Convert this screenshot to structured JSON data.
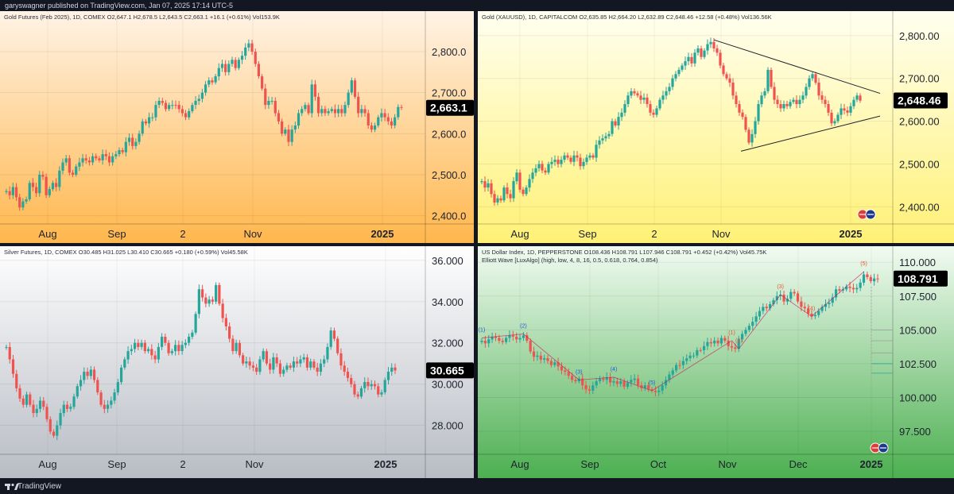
{
  "header": {
    "publish_line": "garyswagner published on TradingView.com, Jan 07, 2025 17:14 UTC-5"
  },
  "footer": {
    "brand": "TradingView"
  },
  "colors": {
    "up": "#26a69a",
    "down": "#ef5350",
    "badge": "#000000"
  },
  "panels": {
    "gold_futures": {
      "title": "Gold Futures (Feb 2025), 1D, COMEX  O2,647.1  H2,678.5  L2,643.5  C2,663.1  +16.1 (+0.61%)  Vol153.9K",
      "last_price": "2,663.1"
    },
    "gold_spot": {
      "title": "Gold (XAUUSD), 1D, CAPITALCOM  O2,635.85  H2,664.20  L2,632.89  C2,648.46  +12.58 (+0.48%)  Vol136.56K",
      "last_price": "2,648.46"
    },
    "silver": {
      "title": "Silver Futures, 1D, COMEX  O30.485  H31.025  L30.410  C30.665  +0.180 (+0.59%)  Vol45.58K",
      "last_price": "30.665"
    },
    "dxy": {
      "title": "US Dollar Index, 1D, PEPPERSTONE  O108.436  H108.791  L107.946  C108.791  +0.452 (+0.42%)  Vol45.75K",
      "indicator": "Elliott Wave [LuxAlgo] (high, low, 4, 8, 16, 0.5, 0.618, 0.764, 0.854)",
      "last_price": "108.791"
    }
  },
  "chart_data": [
    {
      "id": "gold_futures",
      "type": "candlestick",
      "title": "Gold Futures (Feb 2025), 1D, COMEX",
      "y_ticks": [
        "2,800.0",
        "2,700.0",
        "2,600.0",
        "2,500.0",
        "2,400.0"
      ],
      "ylim": [
        2380,
        2860
      ],
      "x_ticks": [
        "Aug",
        "Sep",
        "2",
        "Nov",
        "2025"
      ],
      "last": 2663.1,
      "closes": [
        2460,
        2450,
        2470,
        2445,
        2420,
        2435,
        2440,
        2480,
        2470,
        2455,
        2500,
        2495,
        2450,
        2465,
        2480,
        2470,
        2510,
        2530,
        2540,
        2505,
        2500,
        2520,
        2530,
        2540,
        2535,
        2530,
        2545,
        2540,
        2535,
        2550,
        2545,
        2530,
        2545,
        2550,
        2560,
        2555,
        2580,
        2590,
        2570,
        2580,
        2600,
        2630,
        2625,
        2640,
        2640,
        2670,
        2680,
        2675,
        2660,
        2670,
        2670,
        2670,
        2660,
        2650,
        2640,
        2655,
        2670,
        2680,
        2685,
        2700,
        2720,
        2730,
        2725,
        2740,
        2760,
        2770,
        2750,
        2770,
        2780,
        2760,
        2780,
        2790,
        2810,
        2820,
        2800,
        2770,
        2740,
        2710,
        2670,
        2680,
        2680,
        2650,
        2630,
        2600,
        2610,
        2580,
        2610,
        2620,
        2650,
        2660,
        2670,
        2650,
        2720,
        2690,
        2650,
        2660,
        2650,
        2655,
        2660,
        2650,
        2660,
        2650,
        2670,
        2700,
        2730,
        2690,
        2650,
        2660,
        2650,
        2620,
        2610,
        2620,
        2640,
        2650,
        2640,
        2630,
        2620,
        2640,
        2665,
        2663
      ]
    },
    {
      "id": "gold_spot",
      "type": "candlestick",
      "title": "Gold (XAUUSD), 1D, CAPITALCOM",
      "y_ticks": [
        "2,800.00",
        "2,700.00",
        "2,600.00",
        "2,500.00",
        "2,400.00"
      ],
      "ylim": [
        2360,
        2820
      ],
      "x_ticks": [
        "Aug",
        "Sep",
        "2",
        "Nov",
        "2025"
      ],
      "last": 2648.46,
      "closes": [
        2460,
        2445,
        2455,
        2430,
        2410,
        2420,
        2415,
        2445,
        2430,
        2420,
        2460,
        2480,
        2440,
        2430,
        2445,
        2465,
        2480,
        2490,
        2500,
        2485,
        2480,
        2500,
        2505,
        2510,
        2500,
        2510,
        2520,
        2515,
        2505,
        2520,
        2515,
        2495,
        2505,
        2515,
        2520,
        2515,
        2545,
        2555,
        2560,
        2565,
        2570,
        2600,
        2590,
        2610,
        2620,
        2640,
        2660,
        2670,
        2665,
        2660,
        2650,
        2655,
        2640,
        2620,
        2615,
        2630,
        2650,
        2660,
        2670,
        2680,
        2700,
        2710,
        2720,
        2730,
        2740,
        2750,
        2735,
        2760,
        2770,
        2750,
        2765,
        2780,
        2785,
        2770,
        2760,
        2730,
        2710,
        2700,
        2690,
        2660,
        2640,
        2620,
        2610,
        2580,
        2550,
        2570,
        2600,
        2640,
        2660,
        2670,
        2720,
        2680,
        2650,
        2640,
        2630,
        2640,
        2635,
        2645,
        2650,
        2640,
        2650,
        2660,
        2680,
        2700,
        2710,
        2690,
        2660,
        2650,
        2640,
        2620,
        2595,
        2600,
        2615,
        2630,
        2625,
        2620,
        2635,
        2650,
        2660,
        2648
      ]
    },
    {
      "id": "silver",
      "type": "candlestick",
      "title": "Silver Futures, 1D, COMEX",
      "y_ticks": [
        "36.000",
        "34.000",
        "32.000",
        "30.000",
        "28.000"
      ],
      "ylim": [
        26.6,
        36.3
      ],
      "x_ticks": [
        "Aug",
        "Sep",
        "2",
        "Nov",
        "2025"
      ],
      "last": 30.665,
      "closes": [
        31.8,
        31.2,
        30.5,
        29.8,
        29.3,
        29.0,
        29.5,
        29.0,
        28.6,
        28.8,
        29.2,
        28.9,
        28.3,
        27.7,
        27.5,
        28.0,
        28.6,
        29.0,
        28.8,
        28.9,
        29.4,
        29.9,
        30.2,
        30.6,
        30.4,
        30.7,
        30.2,
        29.6,
        29.0,
        28.8,
        29.0,
        29.2,
        29.6,
        30.1,
        30.8,
        31.2,
        31.6,
        31.7,
        32.0,
        31.8,
        32.0,
        31.6,
        31.7,
        31.4,
        31.2,
        31.8,
        32.3,
        32.0,
        31.5,
        31.6,
        31.9,
        31.6,
        31.9,
        32.0,
        32.3,
        32.5,
        33.4,
        34.6,
        34.2,
        33.9,
        34.1,
        34.0,
        34.8,
        33.9,
        33.2,
        32.8,
        32.2,
        31.6,
        32.0,
        31.4,
        31.0,
        31.1,
        30.9,
        30.8,
        30.6,
        31.2,
        31.6,
        31.0,
        30.7,
        31.3,
        31.0,
        30.5,
        30.7,
        30.9,
        30.8,
        31.1,
        31.0,
        31.2,
        31.3,
        30.8,
        31.1,
        30.8,
        30.6,
        31.0,
        31.2,
        31.8,
        32.6,
        32.2,
        31.5,
        30.9,
        30.6,
        30.3,
        30.0,
        29.5,
        29.4,
        29.8,
        30.1,
        29.9,
        30.0,
        29.9,
        29.5,
        29.6,
        30.2,
        30.6,
        30.8,
        30.665
      ]
    },
    {
      "id": "dxy",
      "type": "candlestick",
      "title": "US Dollar Index, 1D, PEPPERSTONE",
      "y_ticks": [
        "110.000",
        "107.500",
        "105.000",
        "102.500",
        "100.000",
        "97.500"
      ],
      "ylim": [
        95.8,
        110.6
      ],
      "x_ticks": [
        "Aug",
        "Sep",
        "Oct",
        "Nov",
        "Dec",
        "2025"
      ],
      "last": 108.791,
      "closes": [
        104.2,
        104.0,
        104.3,
        104.5,
        104.4,
        104.2,
        104.1,
        104.4,
        104.6,
        104.5,
        104.3,
        104.4,
        104.6,
        104.2,
        103.4,
        103.0,
        103.1,
        102.8,
        102.9,
        102.7,
        102.4,
        102.6,
        102.3,
        102.0,
        101.9,
        101.6,
        101.3,
        101.2,
        101.4,
        100.9,
        100.6,
        100.5,
        100.9,
        101.2,
        101.4,
        101.3,
        101.5,
        101.1,
        101.2,
        101.0,
        101.2,
        100.8,
        101.1,
        101.3,
        101.4,
        100.9,
        100.7,
        100.9,
        100.6,
        100.5,
        100.4,
        100.5,
        100.9,
        101.3,
        101.7,
        102.0,
        102.4,
        102.4,
        102.7,
        102.9,
        103.1,
        103.1,
        103.5,
        103.5,
        103.8,
        104.1,
        104.0,
        104.2,
        104.0,
        104.4,
        104.2,
        103.8,
        103.7,
        103.6,
        104.3,
        104.7,
        105.0,
        105.3,
        105.6,
        106.0,
        106.4,
        106.7,
        106.6,
        106.9,
        107.2,
        107.5,
        107.6,
        107.1,
        107.3,
        107.8,
        107.7,
        107.1,
        106.7,
        106.6,
        106.2,
        106.0,
        106.1,
        106.4,
        106.7,
        106.9,
        107.0,
        107.4,
        108.0,
        107.9,
        108.0,
        108.2,
        108.1,
        108.0,
        108.1,
        108.5,
        109.1,
        108.9,
        108.6,
        108.8,
        108.791
      ]
    }
  ]
}
